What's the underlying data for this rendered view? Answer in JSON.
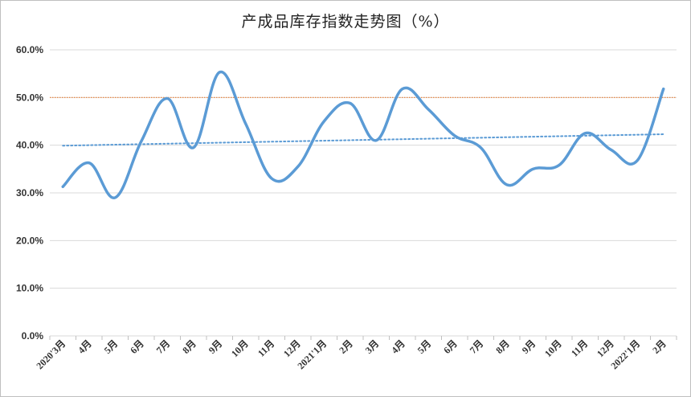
{
  "chart_data": {
    "type": "line",
    "title": "产成品库存指数走势图（%）",
    "categories": [
      "2020'3月",
      "4月",
      "5月",
      "6月",
      "7月",
      "8月",
      "9月",
      "10月",
      "11月",
      "12月",
      "2021'1月",
      "2月",
      "3月",
      "4月",
      "5月",
      "6月",
      "7月",
      "8月",
      "9月",
      "10月",
      "11月",
      "12月",
      "2022'1月",
      "2月"
    ],
    "series": [
      {
        "values": [
          31.3,
          36.3,
          29.0,
          40.8,
          49.8,
          39.5,
          55.3,
          44.5,
          33.0,
          35.5,
          45.0,
          48.8,
          41.0,
          51.8,
          47.5,
          42.0,
          39.5,
          31.7,
          35.0,
          35.8,
          42.5,
          39.0,
          36.8,
          51.8
        ],
        "color": "#5b9bd5"
      }
    ],
    "trendline": {
      "start": 39.9,
      "end": 42.3,
      "color": "#5b9bd5",
      "style": "dotted"
    },
    "reference_line": {
      "value": 50.0,
      "color": "#ed7d31",
      "style": "dotted"
    },
    "yticks": [
      "0.0%",
      "10.0%",
      "20.0%",
      "30.0%",
      "40.0%",
      "50.0%",
      "60.0%"
    ],
    "ylim": [
      0,
      60
    ],
    "grid": true,
    "legend": "none"
  }
}
